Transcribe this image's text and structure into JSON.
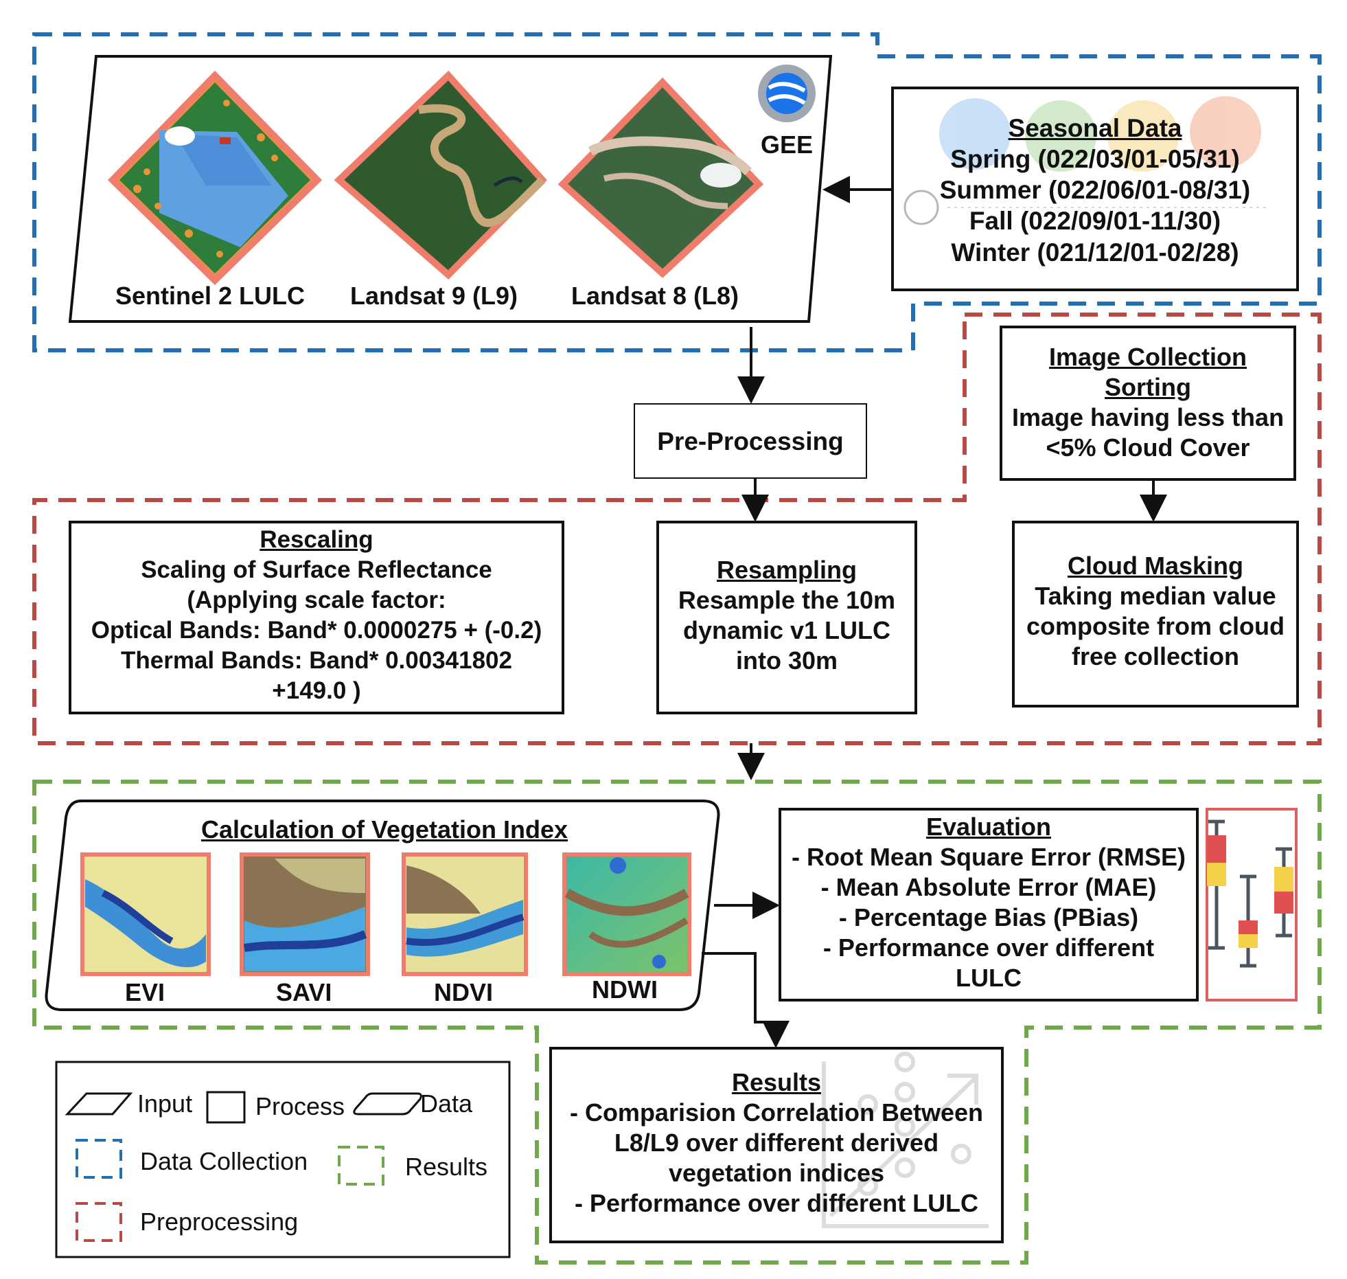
{
  "data_collection": {
    "input": {
      "gee_label": "GEE",
      "images": [
        {
          "label": "Sentinel 2 LULC"
        },
        {
          "label": "Landsat 9 (L9)"
        },
        {
          "label": "Landsat 8 (L8)"
        }
      ]
    },
    "seasonal": {
      "title": "Seasonal Data",
      "lines": [
        "Spring (022/03/01-05/31)",
        "Summer (022/06/01-08/31)",
        "Fall (022/09/01-11/30)",
        "Winter (021/12/01-02/28)"
      ]
    }
  },
  "preprocessing": {
    "pre_processing_label": "Pre-Processing",
    "image_collection": {
      "title_lines": [
        "Image Collection",
        "Sorting"
      ],
      "lines": [
        "Image having less than",
        "<5% Cloud Cover"
      ]
    },
    "rescaling": {
      "title": "Rescaling",
      "lines": [
        "Scaling of Surface Reflectance",
        "(Applying scale factor:",
        "Optical Bands: Band* 0.0000275 + (-0.2)",
        "Thermal Bands: Band* 0.00341802",
        "+149.0 )"
      ]
    },
    "resampling": {
      "title": "Resampling",
      "lines": [
        "Resample the 10m",
        "dynamic v1 LULC",
        "into 30m"
      ]
    },
    "cloud_masking": {
      "title": "Cloud Masking",
      "lines": [
        "Taking median value",
        "composite from cloud",
        "free collection"
      ]
    }
  },
  "results_section": {
    "vegetation": {
      "title": "Calculation of Vegetation Index",
      "indices": [
        {
          "label": "EVI"
        },
        {
          "label": "SAVI"
        },
        {
          "label": "NDVI"
        },
        {
          "label": "NDWI"
        }
      ]
    },
    "evaluation": {
      "title": "Evaluation",
      "lines": [
        "- Root Mean Square Error (RMSE)",
        "- Mean Absolute Error (MAE)",
        "- Percentage Bias (PBias)",
        "- Performance over different",
        "LULC"
      ]
    },
    "results": {
      "title": "Results",
      "lines": [
        "- Comparision Correlation Between",
        "L8/L9 over  different derived",
        "vegetation indices",
        "- Performance over different LULC"
      ]
    }
  },
  "legend": {
    "input": "Input",
    "process": "Process",
    "data": "Data",
    "data_collection": "Data Collection",
    "results": "Results",
    "preprocessing": "Preprocessing"
  },
  "colors": {
    "data_collection": "#1f6fb2",
    "preprocessing": "#b84a45",
    "results": "#6fa84b",
    "image_frame": "#f07d6b"
  }
}
